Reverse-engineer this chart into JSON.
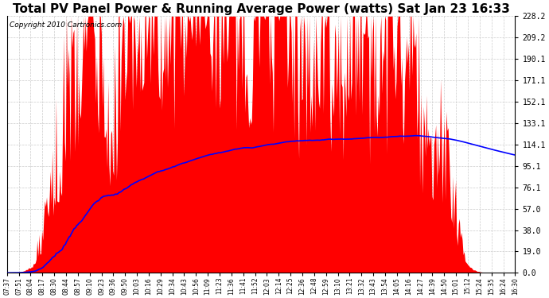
{
  "title": "Total PV Panel Power & Running Average Power (watts) Sat Jan 23 16:33",
  "copyright": "Copyright 2010 Cartronics.com",
  "yticks": [
    0.0,
    19.0,
    38.0,
    57.0,
    76.1,
    95.1,
    114.1,
    133.1,
    152.1,
    171.1,
    190.1,
    209.2,
    228.2
  ],
  "ylim": [
    0.0,
    228.2
  ],
  "background_color": "#ffffff",
  "plot_bg_color": "#ffffff",
  "grid_color": "#cccccc",
  "bar_color": "#ff0000",
  "line_color": "#0000ff",
  "xtick_labels": [
    "07:37",
    "07:51",
    "08:04",
    "08:17",
    "08:30",
    "08:44",
    "08:57",
    "09:10",
    "09:23",
    "09:36",
    "09:50",
    "10:03",
    "10:16",
    "10:29",
    "10:34",
    "10:43",
    "10:56",
    "11:09",
    "11:23",
    "11:36",
    "11:41",
    "11:52",
    "12:03",
    "12:14",
    "12:25",
    "12:36",
    "12:48",
    "12:59",
    "13:10",
    "13:21",
    "13:32",
    "13:43",
    "13:54",
    "14:05",
    "14:16",
    "14:27",
    "14:39",
    "14:50",
    "15:01",
    "15:12",
    "15:24",
    "15:35",
    "16:24",
    "16:30"
  ],
  "title_fontsize": 11,
  "copyright_fontsize": 6.5,
  "figwidth": 6.9,
  "figheight": 3.75,
  "dpi": 100
}
